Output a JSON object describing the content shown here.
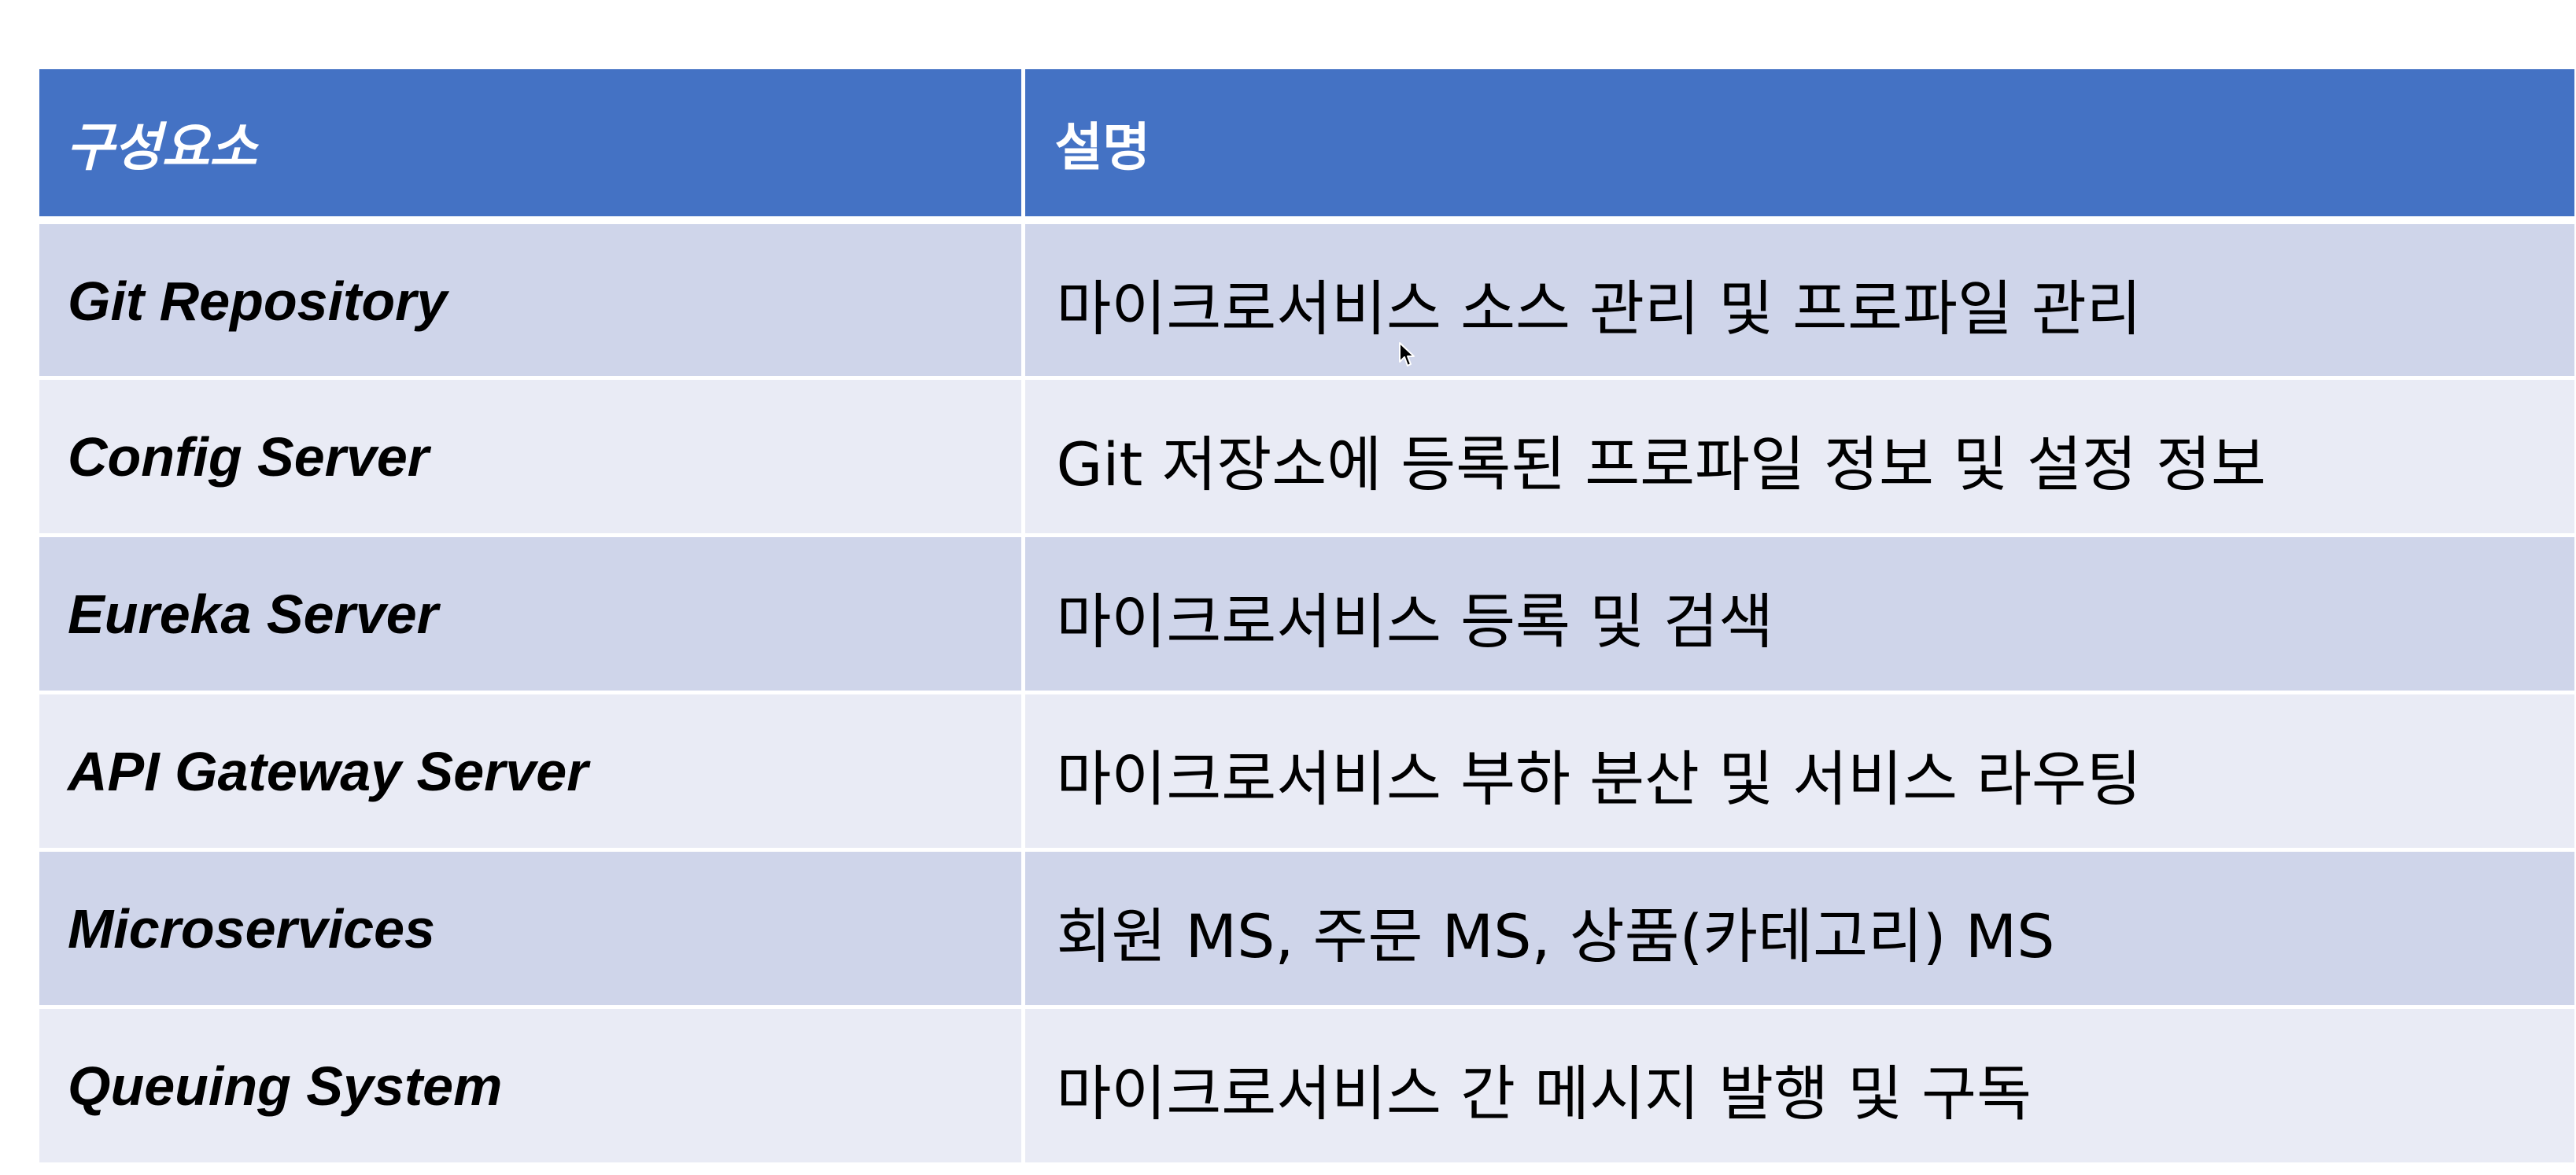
{
  "table": {
    "headers": {
      "component": "구성요소",
      "description": "설명"
    },
    "rows": [
      {
        "component": "Git Repository",
        "description": "마이크로서비스 소스 관리 및 프로파일 관리"
      },
      {
        "component": "Config Server",
        "description": "Git 저장소에 등록된 프로파일 정보 및 설정 정보"
      },
      {
        "component": "Eureka Server",
        "description": "마이크로서비스 등록 및 검색"
      },
      {
        "component": "API Gateway Server",
        "description": "마이크로서비스 부하 분산 및 서비스 라우팅"
      },
      {
        "component": "Microservices",
        "description": "회원 MS, 주문 MS, 상품(카테고리) MS"
      },
      {
        "component": "Queuing System",
        "description": "마이크로서비스 간 메시지 발행 및 구독"
      }
    ]
  },
  "colors": {
    "header_bg": "#4472c4",
    "row_dark": "#cfd5ea",
    "row_light": "#e9ebf5"
  },
  "icons": {
    "cursor": "mouse-pointer-icon"
  }
}
